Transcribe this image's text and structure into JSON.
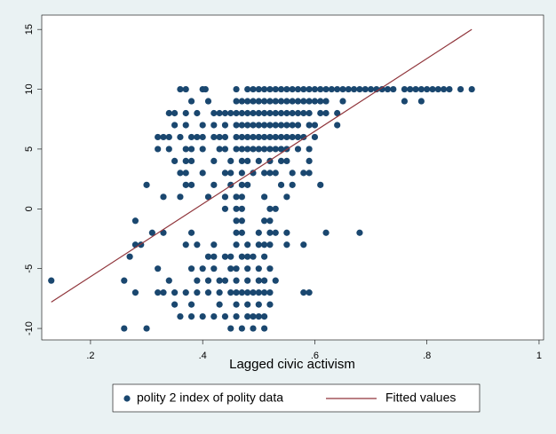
{
  "chart_data": {
    "type": "scatter",
    "xlabel": "Lagged civic activism",
    "xlim": [
      0.113,
      1.008
    ],
    "ylim": [
      -10.96,
      16.2
    ],
    "xticks": [
      {
        "value": 0.2,
        "label": ".2"
      },
      {
        "value": 0.4,
        "label": ".4"
      },
      {
        "value": 0.6,
        "label": ".6"
      },
      {
        "value": 0.8,
        "label": ".8"
      },
      1
    ],
    "yticks": [
      -10,
      -5,
      0,
      5,
      10,
      15
    ],
    "legend": "bottom",
    "series": [
      {
        "name": "polity 2 index of polity data",
        "color": "#1a476f",
        "mark": "point",
        "x": [
          0.36,
          0.37,
          0.4,
          0.405,
          0.46,
          0.48,
          0.49,
          0.5,
          0.51,
          0.52,
          0.53,
          0.54,
          0.55,
          0.56,
          0.57,
          0.58,
          0.59,
          0.6,
          0.61,
          0.62,
          0.63,
          0.64,
          0.65,
          0.66,
          0.67,
          0.68,
          0.69,
          0.7,
          0.71,
          0.72,
          0.73,
          0.74,
          0.76,
          0.77,
          0.78,
          0.79,
          0.8,
          0.81,
          0.82,
          0.83,
          0.84,
          0.86,
          0.88,
          0.38,
          0.41,
          0.46,
          0.47,
          0.48,
          0.49,
          0.5,
          0.51,
          0.52,
          0.53,
          0.54,
          0.55,
          0.56,
          0.57,
          0.58,
          0.59,
          0.6,
          0.61,
          0.62,
          0.65,
          0.76,
          0.79,
          0.34,
          0.35,
          0.37,
          0.39,
          0.42,
          0.43,
          0.44,
          0.45,
          0.46,
          0.47,
          0.48,
          0.49,
          0.5,
          0.51,
          0.52,
          0.53,
          0.54,
          0.55,
          0.56,
          0.57,
          0.58,
          0.59,
          0.61,
          0.62,
          0.64,
          0.35,
          0.37,
          0.4,
          0.42,
          0.44,
          0.46,
          0.47,
          0.48,
          0.49,
          0.5,
          0.51,
          0.52,
          0.53,
          0.54,
          0.55,
          0.56,
          0.57,
          0.59,
          0.6,
          0.64,
          0.32,
          0.33,
          0.34,
          0.36,
          0.38,
          0.39,
          0.4,
          0.42,
          0.43,
          0.44,
          0.46,
          0.47,
          0.48,
          0.49,
          0.5,
          0.51,
          0.52,
          0.53,
          0.54,
          0.55,
          0.56,
          0.57,
          0.58,
          0.6,
          0.32,
          0.34,
          0.37,
          0.38,
          0.4,
          0.43,
          0.44,
          0.46,
          0.47,
          0.48,
          0.49,
          0.5,
          0.51,
          0.52,
          0.53,
          0.54,
          0.55,
          0.57,
          0.59,
          0.35,
          0.37,
          0.38,
          0.42,
          0.45,
          0.47,
          0.48,
          0.5,
          0.52,
          0.54,
          0.55,
          0.59,
          0.36,
          0.37,
          0.4,
          0.44,
          0.45,
          0.47,
          0.49,
          0.51,
          0.52,
          0.53,
          0.56,
          0.58,
          0.59,
          0.3,
          0.37,
          0.38,
          0.42,
          0.45,
          0.47,
          0.48,
          0.54,
          0.56,
          0.61,
          0.33,
          0.36,
          0.41,
          0.44,
          0.46,
          0.47,
          0.51,
          0.55,
          0.44,
          0.46,
          0.47,
          0.52,
          0.53,
          0.28,
          0.46,
          0.47,
          0.51,
          0.52,
          0.31,
          0.33,
          0.38,
          0.46,
          0.47,
          0.5,
          0.52,
          0.53,
          0.55,
          0.62,
          0.68,
          0.28,
          0.29,
          0.37,
          0.39,
          0.42,
          0.46,
          0.48,
          0.5,
          0.51,
          0.52,
          0.55,
          0.58,
          0.27,
          0.41,
          0.42,
          0.44,
          0.45,
          0.47,
          0.48,
          0.49,
          0.51,
          0.32,
          0.38,
          0.4,
          0.42,
          0.45,
          0.46,
          0.48,
          0.5,
          0.52,
          0.13,
          0.26,
          0.34,
          0.39,
          0.41,
          0.43,
          0.44,
          0.46,
          0.48,
          0.5,
          0.51,
          0.53,
          0.28,
          0.32,
          0.33,
          0.35,
          0.37,
          0.39,
          0.41,
          0.43,
          0.45,
          0.46,
          0.47,
          0.48,
          0.49,
          0.5,
          0.51,
          0.52,
          0.58,
          0.59,
          0.35,
          0.38,
          0.43,
          0.46,
          0.48,
          0.5,
          0.52,
          0.36,
          0.38,
          0.4,
          0.42,
          0.44,
          0.46,
          0.48,
          0.49,
          0.5,
          0.51,
          0.26,
          0.3,
          0.45,
          0.47,
          0.49,
          0.51
        ],
        "values": [
          10,
          10,
          10,
          10,
          10,
          10,
          10,
          10,
          10,
          10,
          10,
          10,
          10,
          10,
          10,
          10,
          10,
          10,
          10,
          10,
          10,
          10,
          10,
          10,
          10,
          10,
          10,
          10,
          10,
          10,
          10,
          10,
          10,
          10,
          10,
          10,
          10,
          10,
          10,
          10,
          10,
          10,
          10,
          9,
          9,
          9,
          9,
          9,
          9,
          9,
          9,
          9,
          9,
          9,
          9,
          9,
          9,
          9,
          9,
          9,
          9,
          9,
          9,
          9,
          9,
          8,
          8,
          8,
          8,
          8,
          8,
          8,
          8,
          8,
          8,
          8,
          8,
          8,
          8,
          8,
          8,
          8,
          8,
          8,
          8,
          8,
          8,
          8,
          8,
          8,
          7,
          7,
          7,
          7,
          7,
          7,
          7,
          7,
          7,
          7,
          7,
          7,
          7,
          7,
          7,
          7,
          7,
          7,
          7,
          7,
          6,
          6,
          6,
          6,
          6,
          6,
          6,
          6,
          6,
          6,
          6,
          6,
          6,
          6,
          6,
          6,
          6,
          6,
          6,
          6,
          6,
          6,
          6,
          6,
          5,
          5,
          5,
          5,
          5,
          5,
          5,
          5,
          5,
          5,
          5,
          5,
          5,
          5,
          5,
          5,
          5,
          5,
          5,
          4,
          4,
          4,
          4,
          4,
          4,
          4,
          4,
          4,
          4,
          4,
          4,
          3,
          3,
          3,
          3,
          3,
          3,
          3,
          3,
          3,
          3,
          3,
          3,
          3,
          2,
          2,
          2,
          2,
          2,
          2,
          2,
          2,
          2,
          2,
          1,
          1,
          1,
          1,
          1,
          1,
          1,
          1,
          0,
          0,
          0,
          0,
          0,
          -1,
          -1,
          -1,
          -1,
          -1,
          -2,
          -2,
          -2,
          -2,
          -2,
          -2,
          -2,
          -2,
          -2,
          -2,
          -2,
          -3,
          -3,
          -3,
          -3,
          -3,
          -3,
          -3,
          -3,
          -3,
          -3,
          -3,
          -3,
          -4,
          -4,
          -4,
          -4,
          -4,
          -4,
          -4,
          -4,
          -4,
          -5,
          -5,
          -5,
          -5,
          -5,
          -5,
          -5,
          -5,
          -5,
          -6,
          -6,
          -6,
          -6,
          -6,
          -6,
          -6,
          -6,
          -6,
          -6,
          -6,
          -6,
          -7,
          -7,
          -7,
          -7,
          -7,
          -7,
          -7,
          -7,
          -7,
          -7,
          -7,
          -7,
          -7,
          -7,
          -7,
          -7,
          -7,
          -7,
          -8,
          -8,
          -8,
          -8,
          -8,
          -8,
          -8,
          -9,
          -9,
          -9,
          -9,
          -9,
          -9,
          -9,
          -9,
          -9,
          -9,
          -10,
          -10,
          -10,
          -10,
          -10,
          -10
        ]
      },
      {
        "name": "Fitted values",
        "color": "#90353b",
        "mark": "line",
        "x": [
          0.13,
          0.88
        ],
        "values": [
          -7.8,
          15
        ]
      }
    ]
  }
}
